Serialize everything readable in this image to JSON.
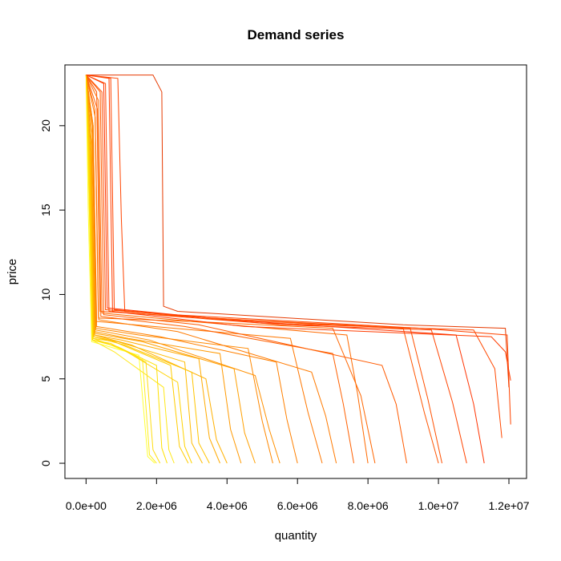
{
  "chart_data": {
    "type": "line",
    "title": "Demand series",
    "xlabel": "quantity",
    "ylabel": "price",
    "xlim": [
      -600000,
      12500000
    ],
    "ylim": [
      -0.9,
      23.6
    ],
    "x_ticks": [
      {
        "value": 0,
        "label": "0.0e+00"
      },
      {
        "value": 2000000,
        "label": "2.0e+06"
      },
      {
        "value": 4000000,
        "label": "4.0e+06"
      },
      {
        "value": 6000000,
        "label": "6.0e+06"
      },
      {
        "value": 8000000,
        "label": "8.0e+06"
      },
      {
        "value": 10000000,
        "label": "1.0e+07"
      },
      {
        "value": 12000000,
        "label": "1.2e+07"
      }
    ],
    "y_ticks": [
      {
        "value": 0,
        "label": "0"
      },
      {
        "value": 5,
        "label": "5"
      },
      {
        "value": 10,
        "label": "10"
      },
      {
        "value": 15,
        "label": "15"
      },
      {
        "value": 20,
        "label": "20"
      }
    ],
    "grid": false,
    "legend": "none",
    "color_gradient": [
      "#ffff33",
      "#ffcc00",
      "#ff9900",
      "#ff5500",
      "#e62200"
    ],
    "series": [
      {
        "color": "#e63a00",
        "x": [
          0,
          1900000,
          2150000,
          2200000,
          2600000,
          9000000,
          11900000,
          12000000
        ],
        "y": [
          23,
          23,
          22,
          9.3,
          9.0,
          8.2,
          8.0,
          4.5
        ]
      },
      {
        "color": "#ff4400",
        "x": [
          0,
          900000,
          1000000,
          1100000,
          2500000,
          6000000,
          9500000,
          11950000,
          12050000
        ],
        "y": [
          23,
          22.8,
          14.5,
          9.0,
          8.8,
          8.4,
          8.0,
          7.6,
          2.3
        ]
      },
      {
        "color": "#ff5500",
        "x": [
          0,
          300000,
          400000,
          2000000,
          6000000,
          9000000,
          9600000,
          10000000
        ],
        "y": [
          23,
          22,
          9.0,
          8.8,
          8.3,
          8.0,
          3.0,
          0
        ]
      },
      {
        "color": "#ff6600",
        "x": [
          0,
          250000,
          350000,
          3000000,
          7000000,
          7800000,
          8200000
        ],
        "y": [
          23,
          21,
          8.6,
          8.4,
          8.0,
          4.0,
          0
        ]
      },
      {
        "color": "#ff3300",
        "x": [
          0,
          500000,
          600000,
          4000000,
          10500000,
          11000000,
          11300000
        ],
        "y": [
          23,
          22.5,
          9.2,
          8.5,
          7.6,
          3.5,
          0
        ]
      },
      {
        "color": "#ff7700",
        "x": [
          0,
          200000,
          300000,
          2500000,
          5800000,
          6300000,
          6700000
        ],
        "y": [
          23,
          20,
          8.4,
          8.0,
          7.4,
          3.0,
          0
        ]
      },
      {
        "color": "#ff8800",
        "x": [
          0,
          180000,
          280000,
          1500000,
          4600000,
          5000000,
          5300000
        ],
        "y": [
          23,
          20,
          8.0,
          7.6,
          6.8,
          2.5,
          0
        ]
      },
      {
        "color": "#ff9900",
        "x": [
          0,
          150000,
          250000,
          1200000,
          3800000,
          4100000,
          4400000
        ],
        "y": [
          23,
          19,
          7.8,
          7.4,
          6.5,
          2.0,
          0
        ]
      },
      {
        "color": "#ffaa00",
        "x": [
          0,
          140000,
          240000,
          1000000,
          3200000,
          3500000,
          3800000
        ],
        "y": [
          23,
          19,
          7.6,
          7.3,
          6.2,
          1.5,
          0
        ]
      },
      {
        "color": "#ffbb00",
        "x": [
          0,
          120000,
          220000,
          900000,
          2800000,
          3000000,
          3300000
        ],
        "y": [
          23,
          18,
          7.5,
          7.2,
          6.0,
          1.2,
          0
        ]
      },
      {
        "color": "#ffcc00",
        "x": [
          0,
          100000,
          200000,
          800000,
          2400000,
          2650000,
          2900000
        ],
        "y": [
          23,
          18,
          7.4,
          7.2,
          5.8,
          1.0,
          0
        ]
      },
      {
        "color": "#ffdd11",
        "x": [
          0,
          90000,
          190000,
          700000,
          1700000,
          1900000,
          2100000
        ],
        "y": [
          23,
          17,
          7.3,
          7.1,
          6.0,
          0.8,
          0
        ]
      },
      {
        "color": "#ffee22",
        "x": [
          0,
          80000,
          180000,
          600000,
          1600000,
          1800000,
          2000000
        ],
        "y": [
          23,
          16,
          7.3,
          7.1,
          6.2,
          0.5,
          0
        ]
      },
      {
        "color": "#ffff33",
        "x": [
          0,
          60000,
          160000,
          500000,
          1500000,
          1750000,
          1950000
        ],
        "y": [
          23,
          15,
          7.2,
          7.0,
          6.4,
          0.4,
          0
        ]
      },
      {
        "color": "#ff5000",
        "x": [
          0,
          450000,
          550000,
          3500000,
          9200000,
          9700000,
          10100000
        ],
        "y": [
          23,
          22,
          9.1,
          8.6,
          8.0,
          3.8,
          0
        ]
      },
      {
        "color": "#ff6a00",
        "x": [
          0,
          350000,
          450000,
          3000000,
          7400000,
          7700000,
          8000000
        ],
        "y": [
          23,
          21.5,
          8.9,
          8.4,
          7.6,
          4.2,
          0
        ]
      },
      {
        "color": "#ff4800",
        "x": [
          0,
          550000,
          650000,
          5000000,
          11000000,
          11600000,
          11800000
        ],
        "y": [
          23,
          22.5,
          9.0,
          8.3,
          7.9,
          5.6,
          1.5
        ]
      },
      {
        "color": "#ff5a00",
        "x": [
          0,
          400000,
          500000,
          3200000,
          8400000,
          8800000,
          9100000
        ],
        "y": [
          23,
          22,
          8.8,
          8.2,
          5.8,
          3.5,
          0
        ]
      },
      {
        "color": "#ff7a00",
        "x": [
          0,
          260000,
          360000,
          2600000,
          6400000,
          6800000,
          7100000
        ],
        "y": [
          23,
          20.5,
          8.5,
          7.8,
          5.4,
          2.8,
          0
        ]
      },
      {
        "color": "#ff9000",
        "x": [
          0,
          170000,
          270000,
          1800000,
          4800000,
          5200000,
          5500000
        ],
        "y": [
          23,
          19.5,
          7.9,
          7.3,
          5.2,
          2.0,
          0
        ]
      },
      {
        "color": "#ffb000",
        "x": [
          0,
          130000,
          230000,
          1300000,
          3400000,
          3700000,
          4000000
        ],
        "y": [
          23,
          18.5,
          7.6,
          7.0,
          5.0,
          1.4,
          0
        ]
      },
      {
        "color": "#ffd200",
        "x": [
          0,
          95000,
          195000,
          1000000,
          2600000,
          2800000,
          3000000
        ],
        "y": [
          23,
          17.5,
          7.4,
          6.8,
          4.8,
          1.0,
          0
        ]
      },
      {
        "color": "#ffe81a",
        "x": [
          0,
          75000,
          175000,
          800000,
          2200000,
          2350000,
          2500000
        ],
        "y": [
          23,
          16.5,
          7.3,
          6.6,
          4.5,
          0.8,
          0
        ]
      },
      {
        "color": "#ff3c00",
        "x": [
          0,
          650000,
          750000,
          4500000,
          11500000,
          11900000,
          12050000
        ],
        "y": [
          23,
          22.8,
          9.0,
          8.1,
          7.5,
          6.6,
          4.9
        ]
      },
      {
        "color": "#ff6000",
        "x": [
          0,
          320000,
          420000,
          2800000,
          7000000,
          7300000,
          7600000
        ],
        "y": [
          23,
          21,
          8.7,
          8.1,
          6.5,
          3.5,
          0
        ]
      },
      {
        "color": "#ff8000",
        "x": [
          0,
          200000,
          300000,
          2100000,
          5400000,
          5700000,
          6000000
        ],
        "y": [
          23,
          20,
          8.1,
          7.5,
          6.0,
          2.6,
          0
        ]
      },
      {
        "color": "#ffa000",
        "x": [
          0,
          150000,
          250000,
          1600000,
          4200000,
          4500000,
          4800000
        ],
        "y": [
          23,
          19,
          7.7,
          7.2,
          5.6,
          1.8,
          0
        ]
      },
      {
        "color": "#ffc400",
        "x": [
          0,
          110000,
          210000,
          1100000,
          3000000,
          3200000,
          3500000
        ],
        "y": [
          23,
          18,
          7.5,
          7.0,
          5.4,
          1.2,
          0
        ]
      },
      {
        "color": "#ffe000",
        "x": [
          0,
          85000,
          185000,
          900000,
          2000000,
          2150000,
          2300000
        ],
        "y": [
          23,
          17,
          7.3,
          6.9,
          5.8,
          0.9,
          0
        ]
      },
      {
        "color": "#ff4400",
        "x": [
          0,
          700000,
          800000,
          5500000,
          9800000,
          10400000,
          10800000
        ],
        "y": [
          23,
          22.8,
          9.1,
          8.2,
          7.9,
          3.6,
          0
        ]
      }
    ]
  }
}
